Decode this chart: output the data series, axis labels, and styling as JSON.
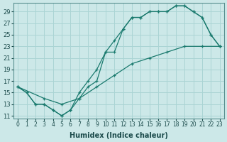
{
  "xlabel": "Humidex (Indice chaleur)",
  "ylabel": "",
  "background_color": "#cce8e8",
  "grid_color": "#aad4d4",
  "line_color": "#1a7a6e",
  "xlim": [
    -0.5,
    23.5
  ],
  "ylim": [
    10.5,
    30.5
  ],
  "xticks": [
    0,
    1,
    2,
    3,
    4,
    5,
    6,
    7,
    8,
    9,
    10,
    11,
    12,
    13,
    14,
    15,
    16,
    17,
    18,
    19,
    20,
    21,
    22,
    23
  ],
  "yticks": [
    11,
    13,
    15,
    17,
    19,
    21,
    23,
    25,
    27,
    29
  ],
  "line1_x": [
    0,
    1,
    2,
    3,
    4,
    5,
    6,
    7,
    8,
    9,
    10,
    11,
    12,
    13,
    14,
    15,
    16,
    17,
    18,
    19,
    20,
    21,
    22,
    23
  ],
  "line1_y": [
    16,
    15,
    13,
    13,
    12,
    11,
    12,
    14,
    16,
    17,
    22,
    22,
    26,
    28,
    28,
    29,
    29,
    29,
    30,
    30,
    29,
    28,
    25,
    23
  ],
  "line2_x": [
    0,
    1,
    2,
    3,
    4,
    5,
    6,
    7,
    8,
    9,
    10,
    11,
    12,
    13,
    14,
    15,
    16,
    17,
    18,
    19,
    20,
    21,
    22,
    23
  ],
  "line2_y": [
    16,
    15,
    13,
    13,
    12,
    11,
    12,
    15,
    17,
    19,
    22,
    24,
    26,
    28,
    28,
    29,
    29,
    29,
    30,
    30,
    29,
    28,
    25,
    23
  ],
  "line3_x": [
    0,
    3,
    5,
    7,
    9,
    11,
    13,
    15,
    17,
    19,
    21,
    23
  ],
  "line3_y": [
    16,
    14,
    13,
    14,
    16,
    18,
    20,
    21,
    22,
    23,
    23,
    23
  ]
}
